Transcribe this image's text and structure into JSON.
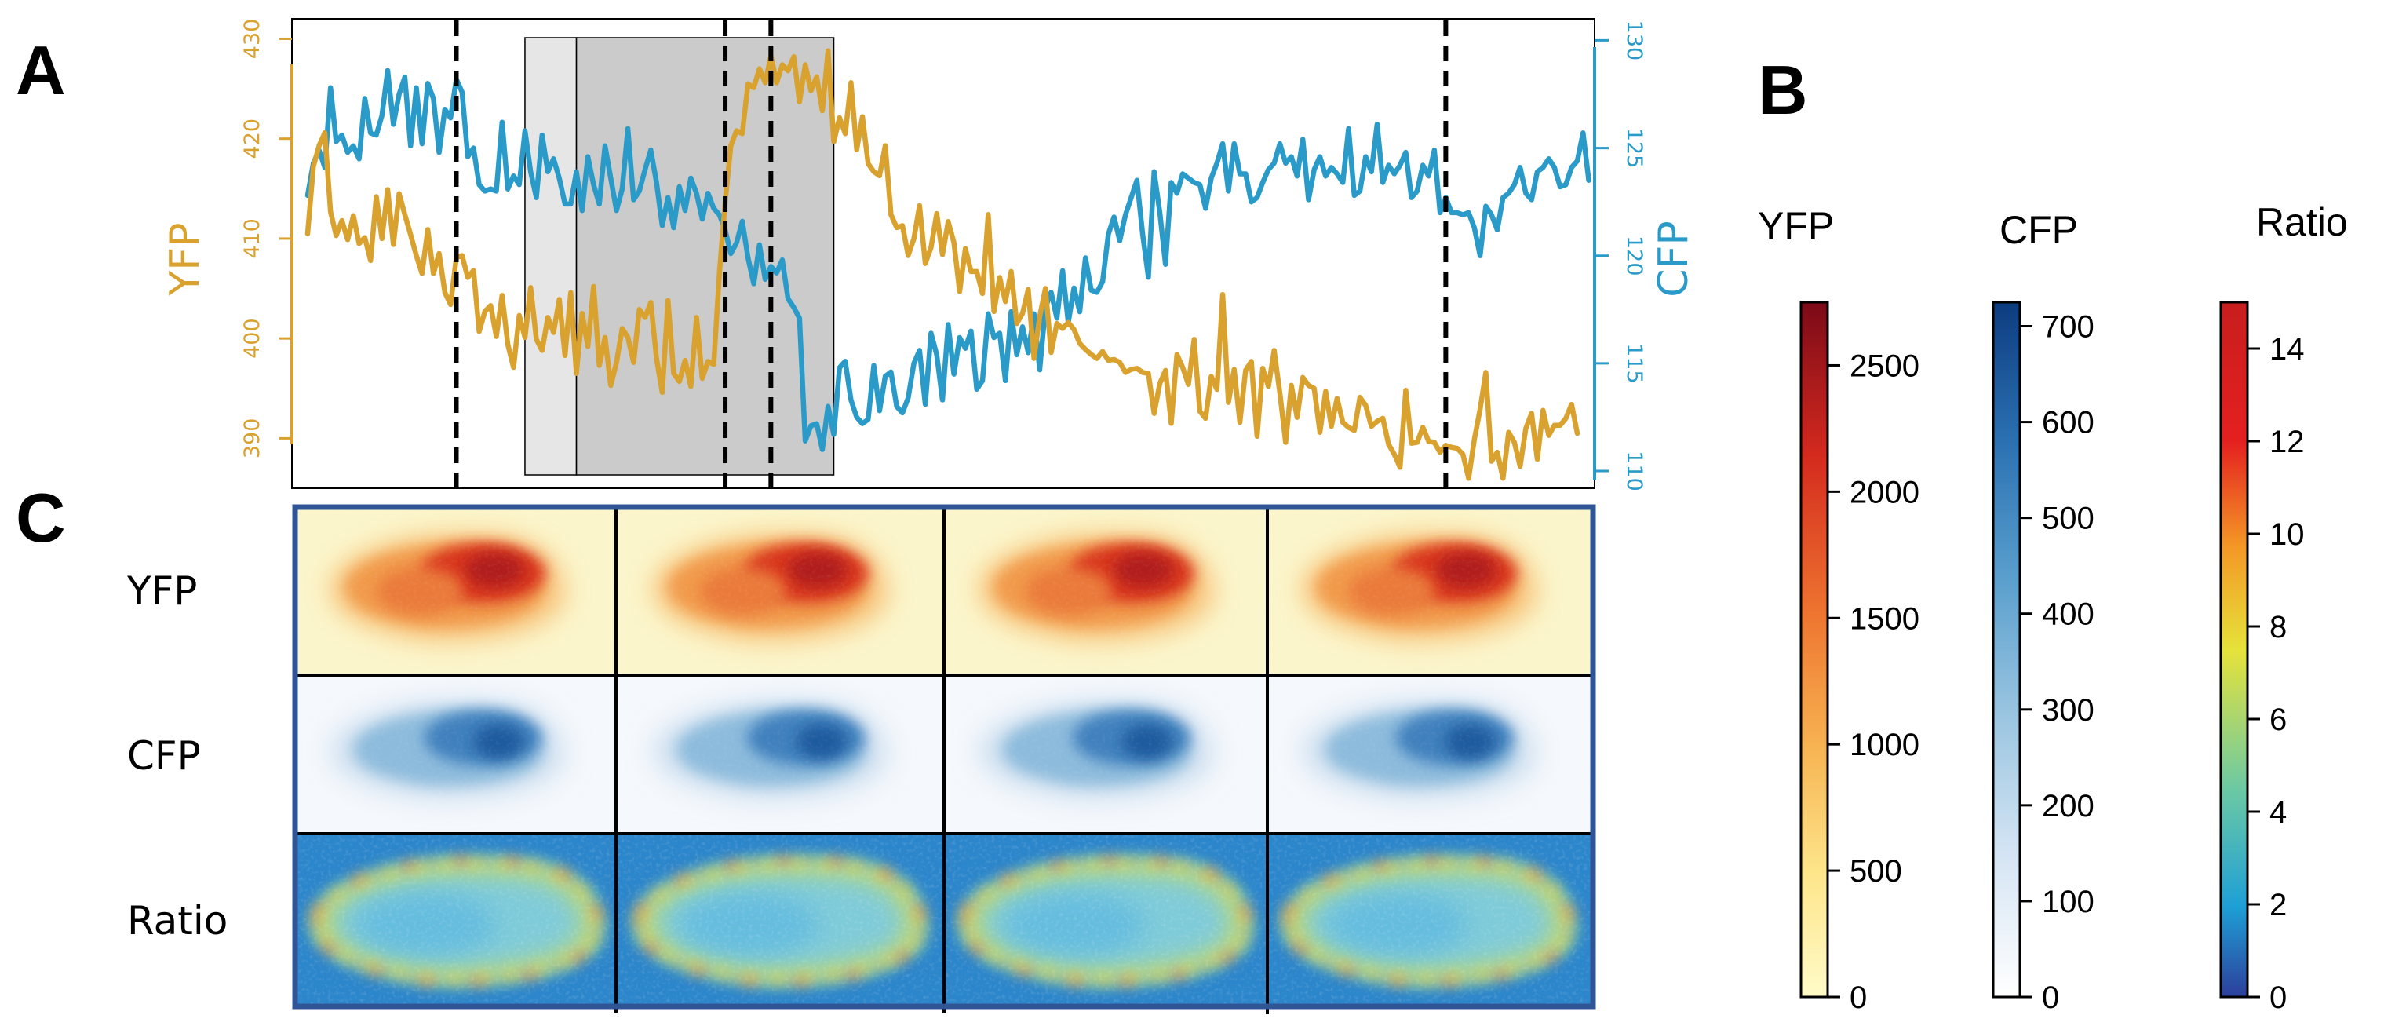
{
  "panels": {
    "a": "A",
    "b": "B",
    "c": "C"
  },
  "chart_data": {
    "type": "line",
    "title": "",
    "y_left": {
      "label": "YFP",
      "ticks": [
        "390",
        "400",
        "410",
        "420",
        "430"
      ],
      "range": [
        385,
        432
      ],
      "color": "#d9a12e"
    },
    "y_right": {
      "label": "CFP",
      "ticks": [
        "110",
        "115",
        "120",
        "125",
        "130"
      ],
      "range": [
        109.2,
        131
      ],
      "color": "#2a9ac9"
    },
    "x_range": [
      0,
      222
    ],
    "dashed_lines_x": [
      26,
      73,
      81,
      199
    ],
    "shaded_regions": [
      {
        "x0": 38,
        "x1": 47,
        "fill": "#e6e6e6"
      },
      {
        "x0": 47,
        "x1": 92,
        "fill": "#cbcbcb"
      }
    ],
    "series": [
      {
        "name": "YFP",
        "axis": "left",
        "color": "#d9a12e",
        "values": [
          410.5,
          417.2,
          419.3,
          420.6,
          412.7,
          410.3,
          411.8,
          409.9,
          412.3,
          409.5,
          410.1,
          407.8,
          414.2,
          410.0,
          414.9,
          409.4,
          414.5,
          412.4,
          410.4,
          408.3,
          406.5,
          410.9,
          406.5,
          408.5,
          404.6,
          403.4,
          408.1,
          408.3,
          406.1,
          406.8,
          400.7,
          402.7,
          403.3,
          400.2,
          404.3,
          399.4,
          397.1,
          402.3,
          400.1,
          405.1,
          399.9,
          398.8,
          402.1,
          400.6,
          403.9,
          398.3,
          404.6,
          396.5,
          402.5,
          399.2,
          405.2,
          397.3,
          400.1,
          395.3,
          397.6,
          401.0,
          400.1,
          397.6,
          402.9,
          402.1,
          403.6,
          398.0,
          394.6,
          403.8,
          396.5,
          395.7,
          397.8,
          395.2,
          402.1,
          396.0,
          397.7,
          397.4,
          406.6,
          413.6,
          419.3,
          420.8,
          420.5,
          425.5,
          425.1,
          427.0,
          425.6,
          428.3,
          425.6,
          427.4,
          426.8,
          428.2,
          423.7,
          427.4,
          424.8,
          426.2,
          422.8,
          428.8,
          419.7,
          422.1,
          420.5,
          425.6,
          418.9,
          422.2,
          417.5,
          416.7,
          416.3,
          419.3,
          412.4,
          411.1,
          411.3,
          408.3,
          410.0,
          413.3,
          407.5,
          409.1,
          412.5,
          408.4,
          411.7,
          409.6,
          404.7,
          409.0,
          406.7,
          406.7,
          404.5,
          412.4,
          402.7,
          406.1,
          403.7,
          406.7,
          401.5,
          402.5,
          404.9,
          398.0,
          402.2,
          405.0,
          398.6,
          401.5,
          401.0,
          401.6,
          400.9,
          399.5,
          398.9,
          398.4,
          398.0,
          398.7,
          397.8,
          397.9,
          397.6,
          396.6,
          396.9,
          397.0,
          396.6,
          396.5,
          392.5,
          395.5,
          396.8,
          391.5,
          398.4,
          397.1,
          395.4,
          399.9,
          392.7,
          392.0,
          396.2,
          394.9,
          404.4,
          393.6,
          396.9,
          391.6,
          396.8,
          397.7,
          390.2,
          397.0,
          395.2,
          398.8,
          394.5,
          389.6,
          395.3,
          392.1,
          396.1,
          395.3,
          395.0,
          390.6,
          394.7,
          391.2,
          394.0,
          391.6,
          391.1,
          390.8,
          394.1,
          393.3,
          391.2,
          391.7,
          392.0,
          389.4,
          388.4,
          387.1,
          394.8,
          389.5,
          389.6,
          391.1,
          389.7,
          389.6,
          388.6,
          389.3,
          389.1,
          389.0,
          388.4,
          386.0,
          389.9,
          392.9,
          396.6,
          387.7,
          388.6,
          386.0,
          390.6,
          389.6,
          387.2,
          391.0,
          392.5,
          387.9,
          392.8,
          390.3,
          391.3,
          391.3,
          392.0,
          393.4,
          390.5
        ],
        "note": "approximate values read from the plot"
      },
      {
        "name": "CFP",
        "axis": "right",
        "color": "#2a9ac9",
        "values": [
          122.8,
          124.3,
          124.9,
          124.1,
          127.8,
          125.3,
          125.6,
          124.8,
          125.1,
          124.5,
          127.3,
          125.7,
          125.6,
          126.5,
          128.6,
          126.1,
          127.5,
          128.3,
          125.1,
          127.8,
          125.2,
          128.0,
          127.3,
          124.8,
          126.8,
          126.4,
          128.2,
          127.6,
          124.6,
          125.0,
          123.3,
          123.0,
          123.1,
          123.0,
          126.2,
          123.1,
          123.7,
          123.3,
          125.8,
          123.9,
          122.7,
          125.6,
          123.9,
          124.5,
          123.6,
          122.4,
          122.4,
          123.9,
          122.1,
          124.6,
          123.3,
          122.4,
          125.1,
          123.6,
          122.1,
          123.1,
          125.9,
          122.6,
          123.0,
          124.0,
          124.9,
          123.4,
          121.4,
          122.7,
          121.3,
          123.2,
          122.1,
          123.6,
          122.9,
          121.7,
          122.9,
          122.2,
          121.9,
          121.2,
          120.1,
          120.6,
          121.6,
          119.9,
          118.7,
          120.5,
          118.9,
          119.5,
          119.2,
          119.8,
          118.0,
          117.6,
          117.1,
          111.4,
          112.1,
          112.2,
          111.0,
          113.0,
          111.7,
          114.8,
          115.1,
          113.3,
          112.5,
          112.2,
          112.4,
          114.9,
          112.8,
          114.4,
          114.6,
          113.0,
          112.7,
          113.4,
          115.0,
          115.6,
          113.1,
          116.4,
          115.4,
          113.3,
          116.8,
          114.5,
          116.2,
          115.7,
          116.5,
          113.8,
          114.2,
          117.3,
          116.2,
          116.4,
          114.2,
          117.4,
          115.4,
          116.7,
          115.5,
          117.3,
          114.7,
          117.6,
          118.3,
          117.1,
          119.3,
          116.9,
          118.5,
          117.4,
          119.9,
          118.4,
          118.3,
          118.8,
          121.0,
          121.8,
          120.7,
          121.9,
          122.7,
          123.5,
          121.0,
          119.0,
          123.9,
          122.0,
          119.6,
          123.4,
          122.9,
          123.8,
          123.6,
          123.4,
          123.3,
          122.2,
          123.6,
          124.3,
          125.2,
          123.0,
          125.2,
          123.8,
          123.8,
          122.5,
          122.7,
          123.4,
          124.0,
          124.3,
          125.2,
          124.3,
          124.6,
          123.7,
          125.4,
          122.6,
          124.0,
          124.6,
          123.7,
          124.1,
          123.8,
          123.4,
          125.9,
          122.8,
          123.0,
          124.6,
          123.9,
          126.1,
          123.4,
          124.2,
          123.8,
          124.2,
          124.8,
          122.7,
          123.0,
          124.2,
          123.7,
          124.9,
          122.0,
          122.7,
          122.0,
          122.0,
          121.9,
          122.0,
          121.3,
          120.0,
          122.3,
          121.9,
          121.2,
          122.7,
          122.9,
          123.3,
          124.1,
          122.9,
          122.6,
          123.9,
          124.1,
          124.5,
          124.1,
          123.2,
          123.3,
          124.1,
          124.4,
          125.7,
          123.5
        ],
        "note": "approximate values read from the plot"
      }
    ]
  },
  "image_grid": {
    "rows": [
      "YFP",
      "CFP",
      "Ratio"
    ],
    "columns": 4
  },
  "colorbars": [
    {
      "name": "YFP",
      "ticks": [
        "0",
        "500",
        "1000",
        "1500",
        "2000",
        "2500"
      ],
      "range": [
        0,
        2750
      ],
      "colors": [
        "#fffbc8",
        "#fde58a",
        "#f7b352",
        "#ee7530",
        "#d42a1e",
        "#7b0a18"
      ]
    },
    {
      "name": "CFP",
      "ticks": [
        "0",
        "100",
        "200",
        "300",
        "400",
        "500",
        "600",
        "700"
      ],
      "range": [
        0,
        725
      ],
      "colors": [
        "#ffffff",
        "#d6e5f4",
        "#9cc6e1",
        "#5a9fcd",
        "#2b71b2",
        "#0d3c80"
      ]
    },
    {
      "name": "Ratio",
      "ticks": [
        "0",
        "2",
        "4",
        "6",
        "8",
        "10",
        "12",
        "14"
      ],
      "range": [
        0,
        15
      ],
      "colors": [
        "#2d3f9c",
        "#1e9fd6",
        "#6cc9a3",
        "#e6e23a",
        "#f49626",
        "#e4201f",
        "#c81e1e"
      ]
    }
  ],
  "colors": {
    "grid_border": "#2f5597",
    "yfp_bg": "#fbf5cb",
    "cfp_bg": "#f5f8fc",
    "ratio_bg": "#2c86cb"
  }
}
